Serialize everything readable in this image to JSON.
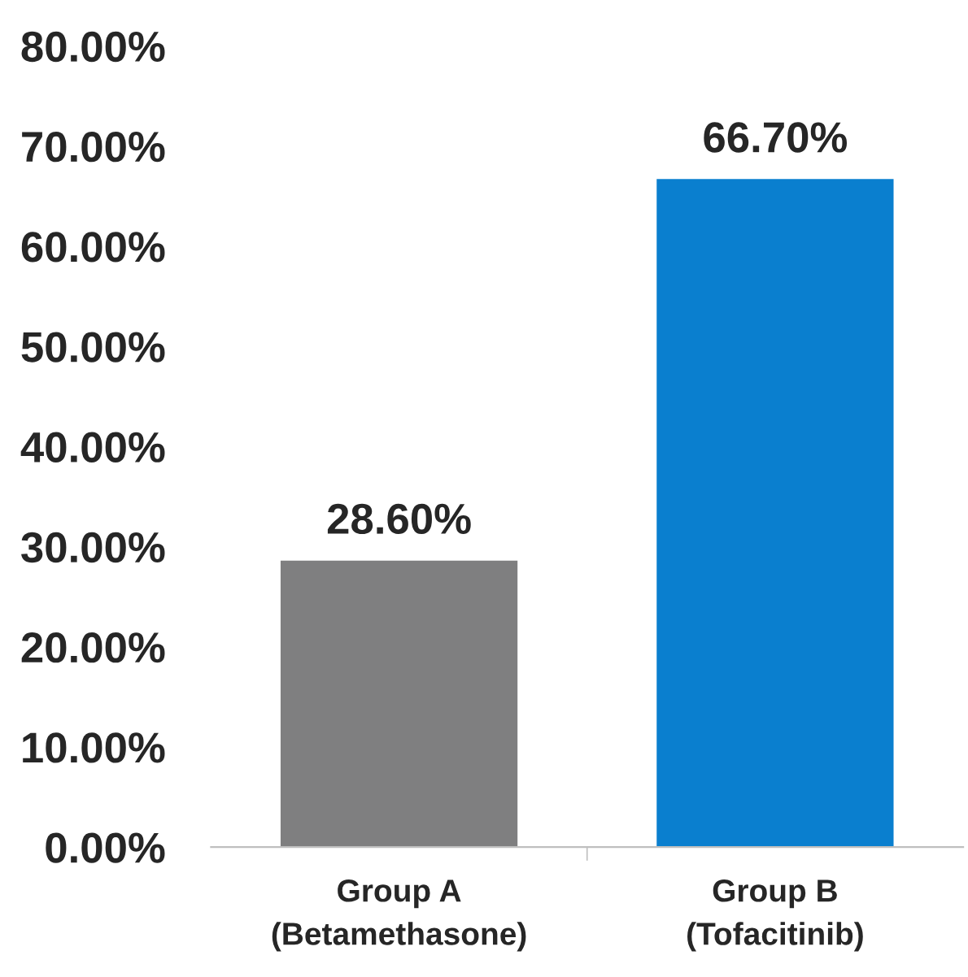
{
  "chart_data": {
    "type": "bar",
    "categories": [
      "Group A\n(Betamethasone)",
      "Group B\n(Tofacitinib)"
    ],
    "values": [
      28.6,
      66.7
    ],
    "colors": [
      "#7f7f80",
      "#0a7fcf"
    ],
    "value_labels": [
      "28.60%",
      "66.70%"
    ],
    "ylim": [
      0,
      80
    ],
    "yticks": [
      {
        "value": 0,
        "label": "0.00%"
      },
      {
        "value": 10,
        "label": "10.00%"
      },
      {
        "value": 20,
        "label": "20.00%"
      },
      {
        "value": 30,
        "label": "30.00%"
      },
      {
        "value": 40,
        "label": "40.00%"
      },
      {
        "value": 50,
        "label": "50.00%"
      },
      {
        "value": 60,
        "label": "60.00%"
      },
      {
        "value": 70,
        "label": "70.00%"
      },
      {
        "value": 80,
        "label": "80.00%"
      }
    ],
    "grid": false,
    "legend": false
  }
}
